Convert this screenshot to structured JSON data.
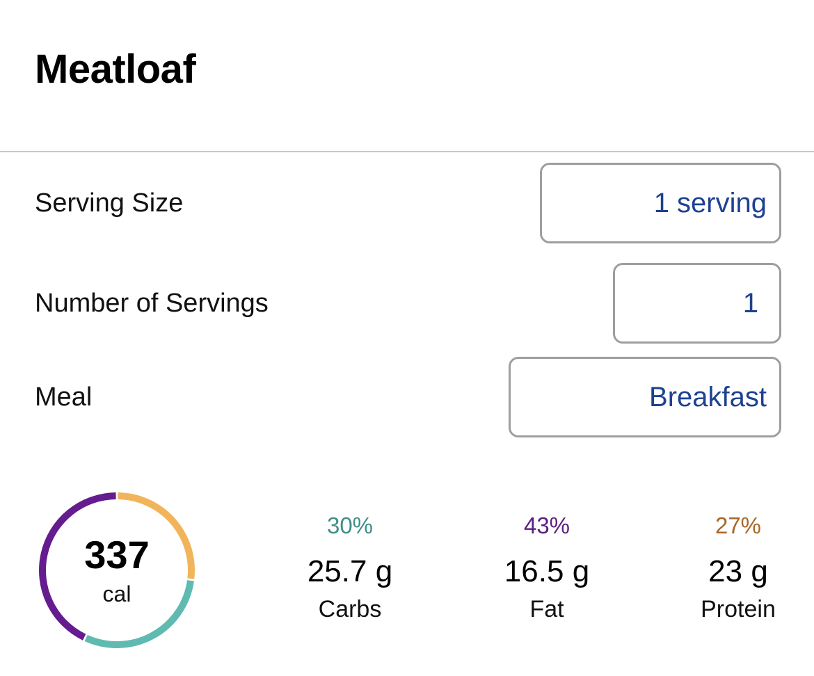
{
  "food": {
    "title": "Meatloaf"
  },
  "form": {
    "serving_size": {
      "label": "Serving Size",
      "value": "1 serving"
    },
    "number_of_servings": {
      "label": "Number of Servings",
      "value": "1"
    },
    "meal": {
      "label": "Meal",
      "value": "Breakfast"
    }
  },
  "nutrition": {
    "calories": {
      "value": "337",
      "unit": "cal"
    },
    "macros": [
      {
        "name": "Carbs",
        "percent": "30%",
        "grams": "25.7 g",
        "color": "#3f8f86",
        "ring_color": "#5fbab2",
        "fraction": 0.3
      },
      {
        "name": "Fat",
        "percent": "43%",
        "grams": "16.5 g",
        "color": "#5a1f7e",
        "ring_color": "#641c8e",
        "fraction": 0.43
      },
      {
        "name": "Protein",
        "percent": "27%",
        "grams": "23 g",
        "color": "#a8672a",
        "ring_color": "#f2b45a",
        "fraction": 0.27
      }
    ]
  },
  "colors": {
    "accent_text": "#1d4192",
    "field_border": "#9e9e9e",
    "divider": "#c8c8c8"
  }
}
